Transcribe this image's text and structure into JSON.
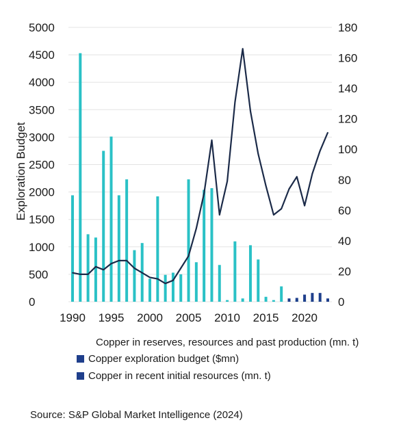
{
  "chart_data": {
    "type": "bar",
    "xlabel": "",
    "ylabel": "Exploration Budget",
    "x_ticks": [
      "1990",
      "1995",
      "2000",
      "2005",
      "2010",
      "2015",
      "2020"
    ],
    "y_left_ticks": [
      "5000",
      "4500",
      "4000",
      "3500",
      "3000",
      "2500",
      "2000",
      "1500",
      "1000",
      "500",
      "0"
    ],
    "y_right_ticks": [
      "180",
      "160",
      "140",
      "120",
      "100",
      "80",
      "60",
      "40",
      "20",
      "0"
    ],
    "ylim_left": [
      0,
      5000
    ],
    "ylim_right": [
      0,
      180
    ],
    "xlim": [
      1990,
      2023
    ],
    "grid": "horizontal",
    "legend_position": "bottom",
    "series": [
      {
        "name": "Copper in reserves, resources and past production (mn. t)",
        "kind": "bar",
        "axis": "left",
        "color": "#2ac1c6",
        "x": [
          1990,
          1991,
          1992,
          1993,
          1994,
          1995,
          1996,
          1997,
          1998,
          1999,
          2000,
          2001,
          2002,
          2003,
          2004,
          2005,
          2006,
          2007,
          2008,
          2009,
          2010,
          2011,
          2012,
          2013,
          2014,
          2015,
          2016,
          2017,
          2018,
          2019,
          2020,
          2021,
          2022,
          2023
        ],
        "values": [
          1940,
          4530,
          1230,
          1170,
          2750,
          3010,
          1940,
          2230,
          940,
          1070,
          420,
          1920,
          490,
          530,
          500,
          2230,
          720,
          2040,
          2070,
          670,
          30,
          1100,
          60,
          1030,
          770,
          90,
          30,
          280,
          20,
          40,
          40,
          30,
          20,
          0
        ]
      },
      {
        "name": "Copper exploration budget ($mn)",
        "kind": "line",
        "axis": "right",
        "color": "#1b2a48",
        "x": [
          1990,
          1991,
          1992,
          1993,
          1994,
          1995,
          1996,
          1997,
          1998,
          1999,
          2000,
          2001,
          2002,
          2003,
          2004,
          2005,
          2006,
          2007,
          2008,
          2009,
          2010,
          2011,
          2012,
          2013,
          2014,
          2015,
          2016,
          2017,
          2018,
          2019,
          2020,
          2021,
          2022,
          2023
        ],
        "values": [
          19,
          18,
          18,
          23,
          21,
          25,
          27,
          27,
          22,
          19,
          16,
          15,
          12,
          14,
          22,
          30,
          48,
          71,
          106,
          57,
          79,
          131,
          166,
          125,
          97,
          76,
          57,
          61,
          74,
          82,
          63,
          84,
          99,
          111
        ]
      },
      {
        "name": "Copper in recent initial resources (mn. t)",
        "kind": "bar",
        "axis": "left",
        "color": "#1f3f8c",
        "x": [
          2018,
          2019,
          2020,
          2021,
          2022,
          2023
        ],
        "values": [
          60,
          70,
          130,
          160,
          160,
          60
        ]
      }
    ],
    "legend": [
      "Copper in reserves, resources and past production (mn. t)",
      "Copper exploration budget ($mn)",
      "Copper in recent initial resources (mn. t)"
    ],
    "legend_swatch_color": "#1f3f8c",
    "source": "Source: S&P Global Market Intelligence (2024)"
  }
}
